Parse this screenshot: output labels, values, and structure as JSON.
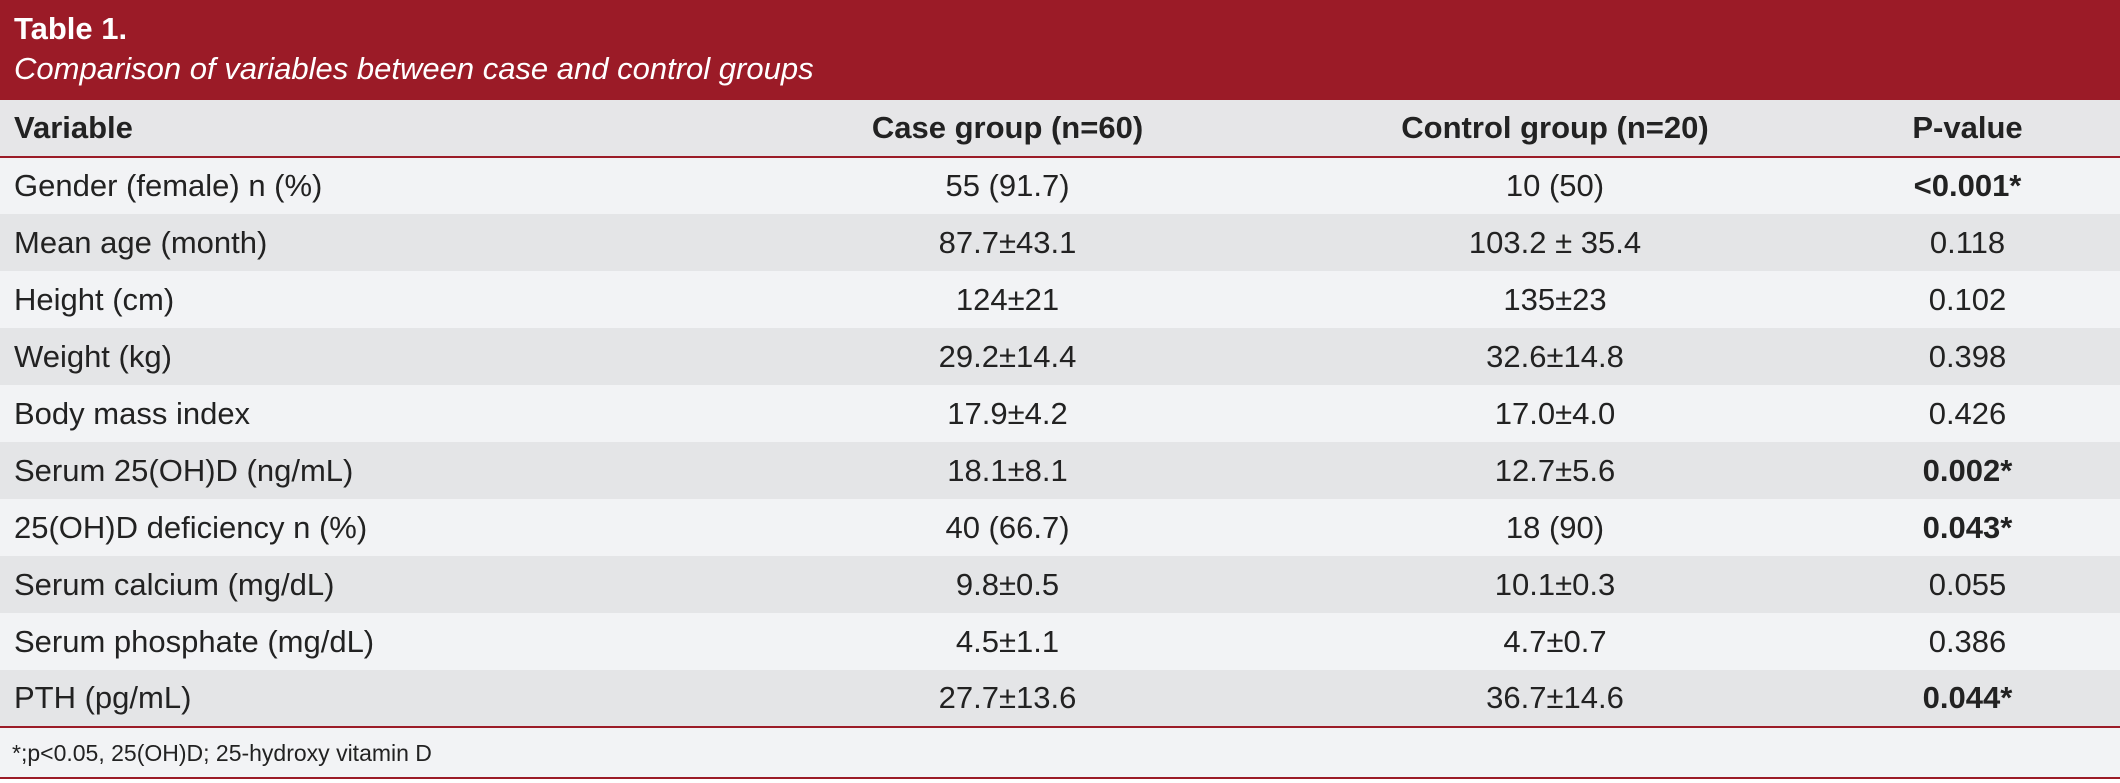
{
  "table_title": "Table 1.",
  "table_subtitle": "Comparison of variables between case and control groups",
  "columns": [
    "Variable",
    "Case group (n=60)",
    "Control group (n=20)",
    "P-value"
  ],
  "rows": [
    {
      "variable": "Gender (female) n (%)",
      "case": "55 (91.7)",
      "control": "10 (50)",
      "p": "<0.001*",
      "significant": true
    },
    {
      "variable": "Mean age (month)",
      "case": "87.7±43.1",
      "control": "103.2 ± 35.4",
      "p": "0.118",
      "significant": false
    },
    {
      "variable": "Height (cm)",
      "case": "124±21",
      "control": "135±23",
      "p": "0.102",
      "significant": false
    },
    {
      "variable": "Weight (kg)",
      "case": "29.2±14.4",
      "control": "32.6±14.8",
      "p": "0.398",
      "significant": false
    },
    {
      "variable": "Body mass index",
      "case": "17.9±4.2",
      "control": "17.0±4.0",
      "p": "0.426",
      "significant": false
    },
    {
      "variable": "Serum 25(OH)D (ng/mL)",
      "case": "18.1±8.1",
      "control": "12.7±5.6",
      "p": "0.002*",
      "significant": true
    },
    {
      "variable": "25(OH)D deficiency n (%)",
      "case": "40 (66.7)",
      "control": "18 (90)",
      "p": "0.043*",
      "significant": true
    },
    {
      "variable": "Serum calcium (mg/dL)",
      "case": "9.8±0.5",
      "control": "10.1±0.3",
      "p": "0.055",
      "significant": false
    },
    {
      "variable": "Serum phosphate (mg/dL)",
      "case": "4.5±1.1",
      "control": "4.7±0.7",
      "p": "0.386",
      "significant": false
    },
    {
      "variable": "PTH (pg/mL)",
      "case": "27.7±13.6",
      "control": "36.7±14.6",
      "p": "0.044*",
      "significant": true
    }
  ],
  "footnote": "*;p<0.05, 25(OH)D; 25-hydroxy vitamin D",
  "colors": {
    "header_bg": "#9b1b27",
    "row_light": "#f2f3f5",
    "row_dark": "#e4e5e7"
  }
}
